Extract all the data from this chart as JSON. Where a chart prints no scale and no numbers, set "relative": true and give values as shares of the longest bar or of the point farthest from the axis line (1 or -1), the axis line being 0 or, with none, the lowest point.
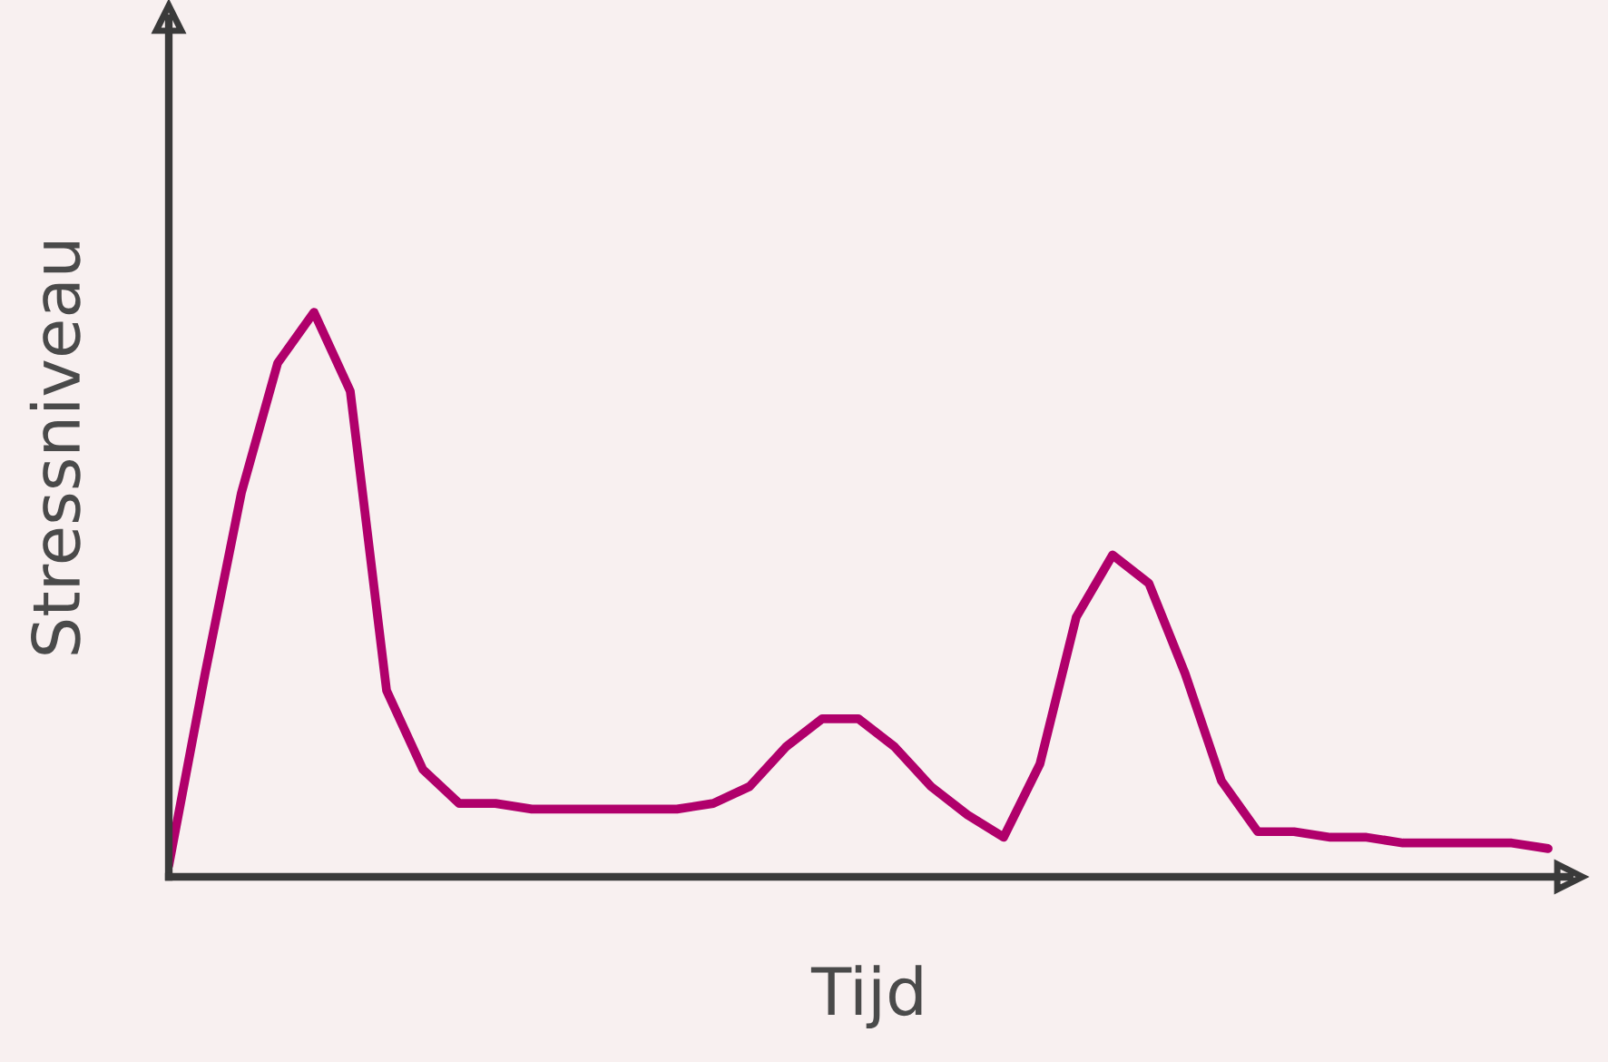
{
  "chart_data": {
    "type": "line",
    "relative": true,
    "xlabel": "Tijd",
    "ylabel": "Stressniveau",
    "categories": [
      null,
      null,
      null,
      null,
      null,
      null,
      null,
      null,
      null,
      null,
      null,
      null,
      null,
      null,
      null,
      null,
      null,
      null,
      null,
      null,
      null,
      null,
      null,
      null,
      null,
      null,
      null,
      null,
      null,
      null,
      null,
      null,
      null,
      null,
      null,
      null,
      null,
      null,
      null
    ],
    "series": [
      {
        "color": "#b0006b",
        "values": [
          0.02,
          0.36,
          0.68,
          0.91,
          1,
          0.86,
          0.33,
          0.19,
          0.13,
          0.13,
          0.12,
          0.12,
          0.12,
          0.12,
          0.12,
          0.13,
          0.16,
          0.23,
          0.28,
          0.28,
          0.23,
          0.16,
          0.11,
          0.07,
          0.2,
          0.46,
          0.57,
          0.52,
          0.36,
          0.17,
          0.08,
          0.08,
          0.07,
          0.07,
          0.06,
          0.06,
          0.06,
          0.06,
          0.05
        ]
      }
    ],
    "legend": false,
    "marker": "none",
    "line_style": "solid"
  }
}
